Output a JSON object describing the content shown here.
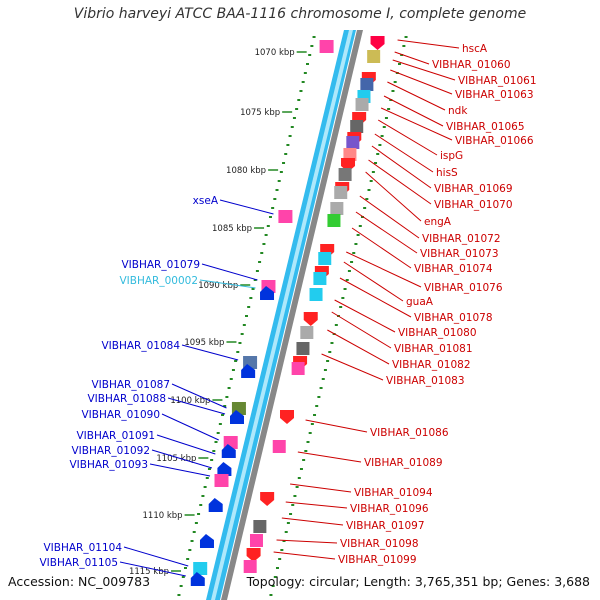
{
  "title": "Vibrio harveyi ATCC BAA-1116 chromosome I, complete genome",
  "footer": {
    "accession": "Accession: NC_009783",
    "topology": "Topology: circular; Length: 3,765,351 bp; Genes: 3,688"
  },
  "colors": {
    "right_label": "#cc0000",
    "left_label": "#0000cc",
    "highlight_label": "#33bbdd",
    "track_main": "#33bbee",
    "track_grey": "#888888",
    "tick": "#228822"
  },
  "kbp_ticks": [
    "1070 kbp",
    "1075 kbp",
    "1080 kbp",
    "1085 kbp",
    "1090 kbp",
    "1095 kbp",
    "1100 kbp",
    "1105 kbp",
    "1110 kbp",
    "1115 kbp"
  ],
  "right_genes": [
    "hscA",
    "VIBHAR_01060",
    "VIBHAR_01061",
    "VIBHAR_01063",
    "ndk",
    "VIBHAR_01065",
    "VIBHAR_01066",
    "ispG",
    "hisS",
    "VIBHAR_01069",
    "VIBHAR_01070",
    "engA",
    "VIBHAR_01072",
    "VIBHAR_01073",
    "VIBHAR_01074",
    "VIBHAR_01076",
    "guaA",
    "VIBHAR_01078",
    "VIBHAR_01080",
    "VIBHAR_01081",
    "VIBHAR_01082",
    "VIBHAR_01083",
    "VIBHAR_01086",
    "VIBHAR_01089",
    "VIBHAR_01094",
    "VIBHAR_01096",
    "VIBHAR_01097",
    "VIBHAR_01098",
    "VIBHAR_01099"
  ],
  "left_genes": [
    "xseA",
    "VIBHAR_01079",
    "VIBHAR_00002",
    "VIBHAR_01084",
    "VIBHAR_01087",
    "VIBHAR_01088",
    "VIBHAR_01090",
    "VIBHAR_01091",
    "VIBHAR_01092",
    "VIBHAR_01093",
    "VIBHAR_01104",
    "VIBHAR_01105"
  ]
}
